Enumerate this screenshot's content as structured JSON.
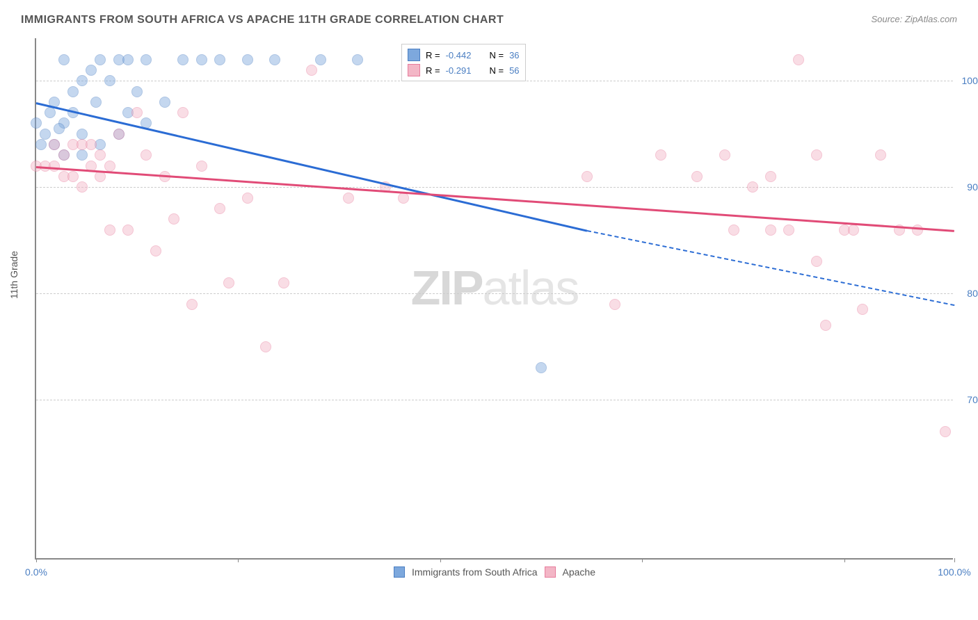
{
  "title": "IMMIGRANTS FROM SOUTH AFRICA VS APACHE 11TH GRADE CORRELATION CHART",
  "source": "Source: ZipAtlas.com",
  "ylabel": "11th Grade",
  "watermark_a": "ZIP",
  "watermark_b": "atlas",
  "chart": {
    "type": "scatter",
    "background_color": "#ffffff",
    "grid_color": "#cccccc",
    "axis_color": "#888888",
    "label_color": "#4a7ec2",
    "xlim": [
      0,
      100
    ],
    "ylim": [
      55,
      104
    ],
    "xticks": [
      0,
      22,
      44,
      66,
      88,
      100
    ],
    "xtick_labels": [
      "0.0%",
      "",
      "",
      "",
      "",
      "100.0%"
    ],
    "yticks": [
      70,
      80,
      90,
      100
    ],
    "ytick_labels": [
      "70.0%",
      "80.0%",
      "90.0%",
      "100.0%"
    ],
    "marker_radius": 8,
    "marker_opacity": 0.45,
    "series": [
      {
        "name": "Immigrants from South Africa",
        "color": "#7da8dd",
        "stroke": "#4a7ec2",
        "R": "-0.442",
        "N": "36",
        "trend": {
          "x1": 0,
          "y1": 98,
          "x2": 60,
          "y2": 86,
          "color": "#2b6cd4",
          "dashed_extend_to": 100,
          "y_extend": 79
        },
        "points": [
          [
            0,
            96
          ],
          [
            1,
            95
          ],
          [
            1.5,
            97
          ],
          [
            2,
            94
          ],
          [
            2,
            98
          ],
          [
            3,
            96
          ],
          [
            3,
            102
          ],
          [
            4,
            97
          ],
          [
            4,
            99
          ],
          [
            5,
            95
          ],
          [
            5,
            100
          ],
          [
            6,
            101
          ],
          [
            6.5,
            98
          ],
          [
            7,
            94
          ],
          [
            7,
            102
          ],
          [
            8,
            100
          ],
          [
            9,
            95
          ],
          [
            9,
            102
          ],
          [
            10,
            97
          ],
          [
            10,
            102
          ],
          [
            11,
            99
          ],
          [
            12,
            96
          ],
          [
            12,
            102
          ],
          [
            14,
            98
          ],
          [
            16,
            102
          ],
          [
            18,
            102
          ],
          [
            20,
            102
          ],
          [
            23,
            102
          ],
          [
            26,
            102
          ],
          [
            31,
            102
          ],
          [
            35,
            102
          ],
          [
            55,
            73
          ],
          [
            3,
            93
          ],
          [
            5,
            93
          ],
          [
            0.5,
            94
          ],
          [
            2.5,
            95.5
          ]
        ]
      },
      {
        "name": "Apache",
        "color": "#f3b6c6",
        "stroke": "#e77c9c",
        "R": "-0.291",
        "N": "56",
        "trend": {
          "x1": 0,
          "y1": 92,
          "x2": 100,
          "y2": 86,
          "color": "#e14b77",
          "dashed_extend_to": null,
          "y_extend": null
        },
        "points": [
          [
            0,
            92
          ],
          [
            1,
            92
          ],
          [
            2,
            92
          ],
          [
            2,
            94
          ],
          [
            3,
            91
          ],
          [
            3,
            93
          ],
          [
            4,
            91
          ],
          [
            4,
            94
          ],
          [
            5,
            94
          ],
          [
            5,
            90
          ],
          [
            6,
            92
          ],
          [
            6,
            94
          ],
          [
            7,
            93
          ],
          [
            7,
            91
          ],
          [
            8,
            86
          ],
          [
            8,
            92
          ],
          [
            9,
            95
          ],
          [
            10,
            86
          ],
          [
            11,
            97
          ],
          [
            12,
            93
          ],
          [
            13,
            84
          ],
          [
            14,
            91
          ],
          [
            15,
            87
          ],
          [
            16,
            97
          ],
          [
            17,
            79
          ],
          [
            18,
            92
          ],
          [
            20,
            88
          ],
          [
            21,
            81
          ],
          [
            23,
            89
          ],
          [
            25,
            75
          ],
          [
            27,
            81
          ],
          [
            30,
            101
          ],
          [
            34,
            89
          ],
          [
            38,
            90
          ],
          [
            40,
            89
          ],
          [
            63,
            79
          ],
          [
            68,
            93
          ],
          [
            72,
            91
          ],
          [
            75,
            93
          ],
          [
            76,
            86
          ],
          [
            78,
            90
          ],
          [
            80,
            91
          ],
          [
            80,
            86
          ],
          [
            82,
            86
          ],
          [
            83,
            102
          ],
          [
            85,
            93
          ],
          [
            85,
            83
          ],
          [
            86,
            77
          ],
          [
            88,
            86
          ],
          [
            89,
            86
          ],
          [
            90,
            78.5
          ],
          [
            92,
            93
          ],
          [
            94,
            86
          ],
          [
            96,
            86
          ],
          [
            99,
            67
          ],
          [
            60,
            91
          ]
        ]
      }
    ]
  },
  "legend_bottom": [
    {
      "label": "Immigrants from South Africa",
      "fill": "#7da8dd",
      "stroke": "#4a7ec2"
    },
    {
      "label": "Apache",
      "fill": "#f3b6c6",
      "stroke": "#e77c9c"
    }
  ]
}
